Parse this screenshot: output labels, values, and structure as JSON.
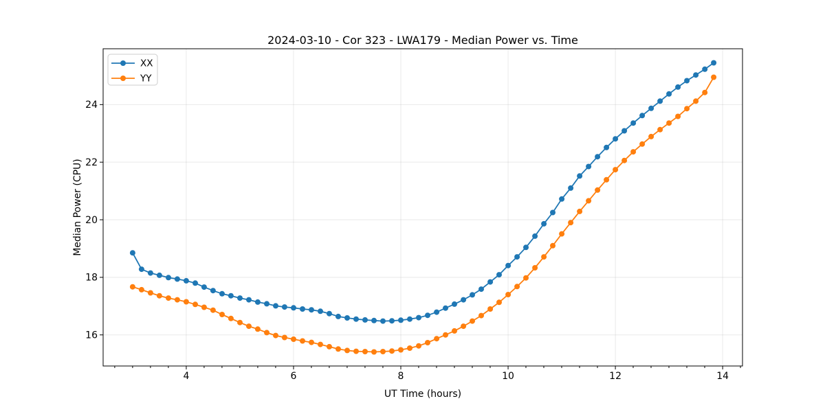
{
  "figure": {
    "title": "2024-03-10 - Cor 323 - LWA179 - Median Power vs. Time"
  },
  "chart_data": {
    "type": "line",
    "title": "2024-03-10 - Cor 323 - LWA179 - Median Power vs. Time",
    "xlabel": "UT Time (hours)",
    "ylabel": "Median Power (CPU)",
    "xlim": [
      2.45,
      14.37
    ],
    "ylim": [
      14.92,
      25.94
    ],
    "x_ticks": [
      4,
      6,
      8,
      10,
      12,
      14
    ],
    "y_ticks": [
      16,
      18,
      20,
      22,
      24
    ],
    "x_minor_step": 0.3333,
    "grid": true,
    "legend_position": "upper-left",
    "marker": "circle",
    "x": [
      3,
      3.167,
      3.333,
      3.5,
      3.667,
      3.833,
      4,
      4.167,
      4.333,
      4.5,
      4.667,
      4.833,
      5,
      5.167,
      5.333,
      5.5,
      5.667,
      5.833,
      6,
      6.167,
      6.333,
      6.5,
      6.667,
      6.833,
      7,
      7.167,
      7.333,
      7.5,
      7.667,
      7.833,
      8,
      8.167,
      8.333,
      8.5,
      8.667,
      8.833,
      9,
      9.167,
      9.333,
      9.5,
      9.667,
      9.833,
      10,
      10.167,
      10.333,
      10.5,
      10.667,
      10.833,
      11,
      11.167,
      11.333,
      11.5,
      11.667,
      11.833,
      12,
      12.167,
      12.333,
      12.5,
      12.667,
      12.833,
      13,
      13.167,
      13.333,
      13.5,
      13.667,
      13.833
    ],
    "series": [
      {
        "name": "XX",
        "color": "#1f77b4",
        "values": [
          18.85,
          18.28,
          18.15,
          18.07,
          17.99,
          17.94,
          17.88,
          17.8,
          17.66,
          17.54,
          17.43,
          17.36,
          17.28,
          17.22,
          17.14,
          17.08,
          17.01,
          16.97,
          16.94,
          16.9,
          16.87,
          16.82,
          16.74,
          16.64,
          16.59,
          16.55,
          16.52,
          16.5,
          16.48,
          16.49,
          16.51,
          16.55,
          16.6,
          16.68,
          16.79,
          16.93,
          17.07,
          17.22,
          17.39,
          17.59,
          17.84,
          18.09,
          18.41,
          18.71,
          19.04,
          19.43,
          19.86,
          20.25,
          20.72,
          21.1,
          21.52,
          21.85,
          22.19,
          22.51,
          22.81,
          23.09,
          23.36,
          23.62,
          23.87,
          24.12,
          24.37,
          24.61,
          24.83,
          25.03,
          25.23,
          25.45
        ]
      },
      {
        "name": "YY",
        "color": "#ff7f0e",
        "values": [
          17.67,
          17.57,
          17.46,
          17.36,
          17.28,
          17.22,
          17.15,
          17.06,
          16.96,
          16.86,
          16.71,
          16.57,
          16.43,
          16.3,
          16.2,
          16.08,
          15.98,
          15.91,
          15.85,
          15.79,
          15.74,
          15.67,
          15.59,
          15.51,
          15.46,
          15.43,
          15.42,
          15.41,
          15.42,
          15.44,
          15.48,
          15.54,
          15.62,
          15.73,
          15.87,
          16.0,
          16.14,
          16.3,
          16.48,
          16.67,
          16.9,
          17.13,
          17.4,
          17.68,
          17.98,
          18.33,
          18.71,
          19.1,
          19.51,
          19.9,
          20.29,
          20.66,
          21.03,
          21.39,
          21.74,
          22.06,
          22.36,
          22.63,
          22.89,
          23.13,
          23.36,
          23.59,
          23.86,
          24.12,
          24.42,
          24.95
        ]
      }
    ]
  }
}
